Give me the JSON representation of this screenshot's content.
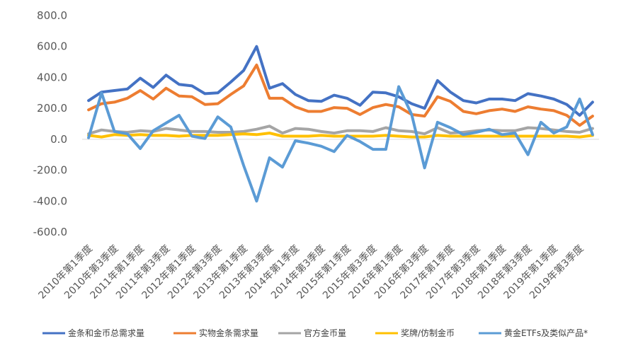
{
  "chart_data": {
    "type": "line",
    "title": "",
    "xlabel": "",
    "ylabel": "",
    "ylim": [
      -600,
      800
    ],
    "yticks": [
      800,
      600,
      400,
      200,
      0,
      -200,
      -400,
      -600
    ],
    "ytick_labels": [
      "800.0",
      "600.0",
      "400.0",
      "200.0",
      "0.0",
      "-200.0",
      "-400.0",
      "-600.0"
    ],
    "grid": false,
    "legend_position": "bottom",
    "x": [
      "2010年第1季度",
      "2010年第2季度",
      "2010年第3季度",
      "2010年第4季度",
      "2011年第1季度",
      "2011年第2季度",
      "2011年第3季度",
      "2011年第4季度",
      "2012年第1季度",
      "2012年第2季度",
      "2012年第3季度",
      "2012年第4季度",
      "2013年第1季度",
      "2013年第2季度",
      "2013年第3季度",
      "2013年第4季度",
      "2014年第1季度",
      "2014年第2季度",
      "2014年第3季度",
      "2014年第4季度",
      "2015年第1季度",
      "2015年第2季度",
      "2015年第3季度",
      "2015年第4季度",
      "2016年第1季度",
      "2016年第2季度",
      "2016年第3季度",
      "2016年第4季度",
      "2017年第1季度",
      "2017年第2季度",
      "2017年第3季度",
      "2017年第4季度",
      "2018年第1季度",
      "2018年第2季度",
      "2018年第3季度",
      "2018年第4季度",
      "2019年第1季度",
      "2019年第2季度",
      "2019年第3季度",
      "2019年第4季度"
    ],
    "xtick_labels": [
      "2010年第1季度",
      "2010年第3季度",
      "2011年第1季度",
      "2011年第3季度",
      "2012年第1季度",
      "2012年第3季度",
      "2013年第1季度",
      "2013年第3季度",
      "2014年第1季度",
      "2014年第3季度",
      "2015年第1季度",
      "2015年第3季度",
      "2016年第1季度",
      "2016年第3季度",
      "2017年第1季度",
      "2017年第3季度",
      "2018年第1季度",
      "2018年第3季度",
      "2019年第1季度",
      "2019年第3季度"
    ],
    "series": [
      {
        "name": "金条和金币总需求量",
        "color": "#4472C4",
        "values": [
          250,
          305,
          315,
          325,
          395,
          335,
          415,
          355,
          345,
          295,
          300,
          370,
          445,
          600,
          330,
          360,
          290,
          250,
          245,
          285,
          265,
          220,
          305,
          300,
          275,
          230,
          200,
          380,
          305,
          250,
          235,
          260,
          260,
          250,
          295,
          280,
          260,
          225,
          155,
          240
        ]
      },
      {
        "name": "实物金条需求量",
        "color": "#ED7D31",
        "values": [
          190,
          230,
          240,
          265,
          315,
          260,
          330,
          280,
          275,
          225,
          230,
          290,
          345,
          480,
          265,
          265,
          210,
          180,
          180,
          205,
          200,
          160,
          205,
          225,
          210,
          160,
          150,
          275,
          245,
          180,
          165,
          185,
          195,
          180,
          210,
          195,
          185,
          155,
          90,
          150
        ]
      },
      {
        "name": "官方金币量",
        "color": "#A5A5A5",
        "values": [
          35,
          60,
          50,
          45,
          55,
          50,
          70,
          60,
          50,
          50,
          45,
          45,
          50,
          65,
          85,
          40,
          70,
          65,
          50,
          40,
          55,
          55,
          50,
          75,
          55,
          50,
          35,
          75,
          40,
          45,
          55,
          60,
          55,
          55,
          75,
          70,
          60,
          50,
          45,
          70
        ]
      },
      {
        "name": "奖牌/仿制金币",
        "color": "#FFC000",
        "values": [
          25,
          15,
          30,
          25,
          30,
          25,
          25,
          20,
          25,
          25,
          25,
          30,
          35,
          30,
          40,
          20,
          20,
          20,
          25,
          20,
          20,
          20,
          20,
          25,
          20,
          15,
          15,
          25,
          20,
          20,
          20,
          20,
          20,
          20,
          20,
          20,
          20,
          20,
          15,
          25
        ]
      },
      {
        "name": "黄金ETFs及类似产品*",
        "color": "#5B9BD5",
        "values": [
          10,
          300,
          50,
          35,
          -60,
          55,
          105,
          155,
          20,
          5,
          145,
          80,
          -170,
          -400,
          -120,
          -180,
          -10,
          -25,
          -45,
          -80,
          25,
          -15,
          -65,
          -65,
          340,
          160,
          -185,
          110,
          75,
          30,
          45,
          65,
          30,
          40,
          -100,
          110,
          40,
          80,
          260,
          30
        ]
      }
    ]
  }
}
